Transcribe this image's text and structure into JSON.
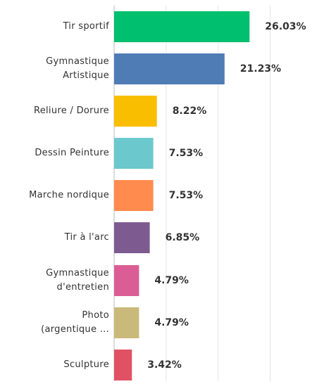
{
  "chart_data": {
    "type": "bar",
    "orientation": "horizontal",
    "categories": [
      "Tir sportif",
      "Gymnastique Artistique",
      "Reliure / Dorure",
      "Dessin Peinture",
      "Marche nordique",
      "Tir à l'arc",
      "Gymnastique d'entretien",
      "Photo (argentique ...",
      "Sculpture"
    ],
    "values": [
      26.03,
      21.23,
      8.22,
      7.53,
      7.53,
      6.85,
      4.79,
      4.79,
      3.42
    ],
    "value_labels": [
      "26.03%",
      "21.23%",
      "8.22%",
      "7.53%",
      "7.53%",
      "6.85%",
      "4.79%",
      "4.79%",
      "3.42%"
    ],
    "colors": [
      "#00bf6f",
      "#507cb6",
      "#f9be00",
      "#6bc8cd",
      "#ff8b4f",
      "#7d5b91",
      "#db5d96",
      "#c9b97a",
      "#e05263"
    ],
    "xlim": [
      0,
      39
    ],
    "gridlines": [
      0,
      10,
      20,
      30
    ]
  }
}
